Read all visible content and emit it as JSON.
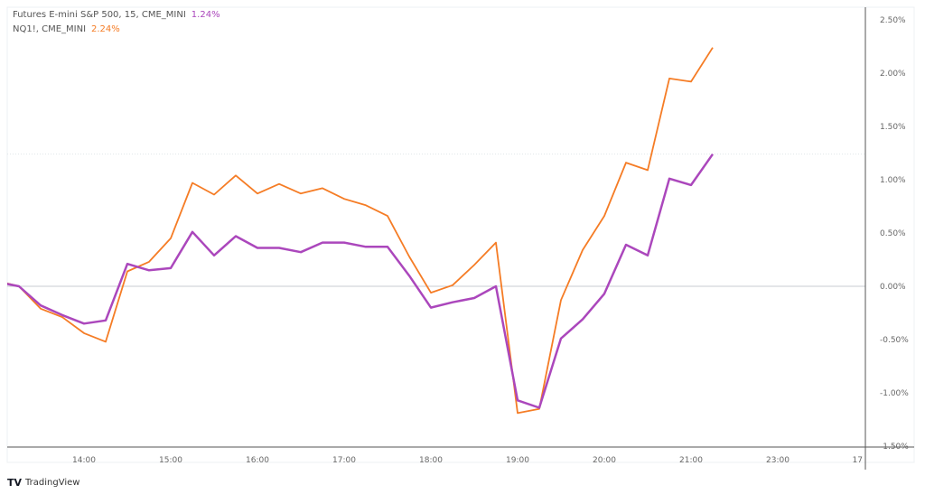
{
  "chart_data": {
    "type": "line",
    "x": [
      "13:00",
      "13:15",
      "13:30",
      "13:45",
      "14:00",
      "14:15",
      "14:30",
      "14:45",
      "15:00",
      "15:15",
      "15:30",
      "15:45",
      "16:00",
      "16:15",
      "16:30",
      "16:45",
      "17:00",
      "17:15",
      "17:30",
      "17:45",
      "18:00",
      "18:15",
      "18:30",
      "18:45",
      "19:00",
      "19:15",
      "19:30",
      "19:45",
      "20:00",
      "20:15",
      "20:30",
      "20:45",
      "21:00",
      "21:15"
    ],
    "series": [
      {
        "name": "Futures E-mini S&P 500, 15, CME_MINI",
        "last": "1.24%",
        "color": "#ab47bc",
        "values": [
          0.04,
          0.0,
          -0.18,
          -0.27,
          -0.35,
          -0.32,
          0.21,
          0.15,
          0.17,
          0.51,
          0.29,
          0.47,
          0.36,
          0.36,
          0.32,
          0.41,
          0.41,
          0.37,
          0.37,
          0.1,
          -0.2,
          -0.15,
          -0.11,
          0.0,
          -1.07,
          -1.14,
          -0.49,
          -0.31,
          -0.07,
          0.39,
          0.29,
          1.01,
          0.95,
          1.24
        ]
      },
      {
        "name": "NQ1!, CME_MINI",
        "last": "2.24%",
        "color": "#f57c25",
        "values": [
          0.05,
          0.0,
          -0.21,
          -0.29,
          -0.44,
          -0.52,
          0.14,
          0.23,
          0.45,
          0.97,
          0.86,
          1.04,
          0.87,
          0.96,
          0.87,
          0.92,
          0.82,
          0.76,
          0.66,
          0.28,
          -0.06,
          0.01,
          0.2,
          0.41,
          -1.19,
          -1.15,
          -0.13,
          0.34,
          0.66,
          1.16,
          1.09,
          1.95,
          1.92,
          2.24
        ]
      }
    ],
    "x_ticks": [
      "14:00",
      "15:00",
      "16:00",
      "17:00",
      "18:00",
      "19:00",
      "20:00",
      "21:00",
      "23:00",
      "17"
    ],
    "y_ticks": [
      "2.50%",
      "2.00%",
      "1.50%",
      "1.00%",
      "0.50%",
      "0.00%",
      "-0.50%",
      "-1.00%",
      "-1.50%"
    ],
    "ylim": [
      -1.5,
      2.5
    ],
    "y_unit": "%",
    "grid": false,
    "legend_placement": "top-left"
  },
  "branding": "TradingView"
}
